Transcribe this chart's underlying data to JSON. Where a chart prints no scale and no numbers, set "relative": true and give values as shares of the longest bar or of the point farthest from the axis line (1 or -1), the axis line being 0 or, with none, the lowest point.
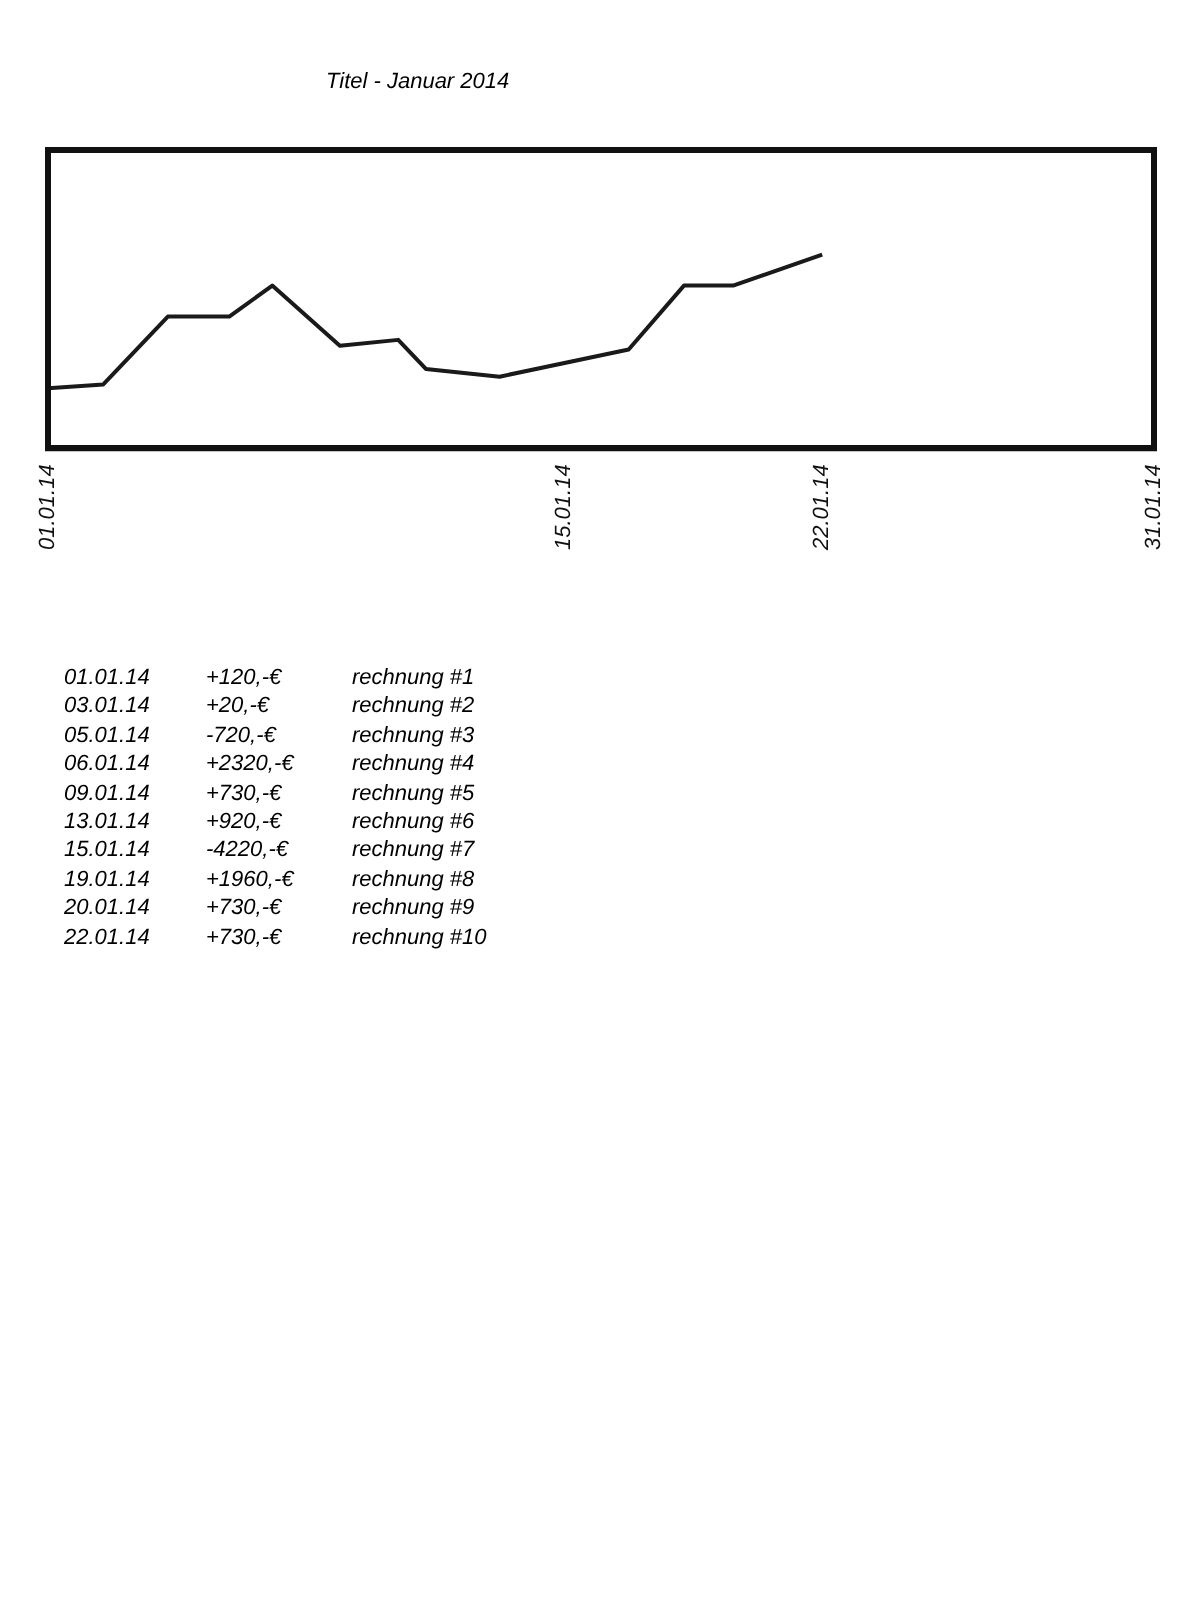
{
  "chart_data": {
    "type": "line",
    "title": "Titel - Januar 2014",
    "relative": true,
    "marker": "none",
    "line_style": "solid",
    "grid": false,
    "legend": false,
    "x": [
      "2014-01-01",
      "2014-01-02T12:00",
      "2014-01-04T06:00",
      "2014-01-05T22:00",
      "2014-01-07T02:00",
      "2014-01-08T22:00",
      "2014-01-10T12:00",
      "2014-01-11T06:00",
      "2014-01-13T06:00",
      "2014-01-16T18:00",
      "2014-01-18T06:00",
      "2014-01-19T14:00",
      "2014-01-22"
    ],
    "series": [
      {
        "color": "#1a1a1a",
        "values": [
          0.31,
          0.33,
          0.68,
          0.68,
          0.84,
          0.53,
          0.56,
          0.41,
          0.37,
          0.51,
          0.84,
          0.84,
          1
        ]
      }
    ],
    "xlim": [
      "2014-01-01",
      "2014-01-31"
    ],
    "xticks": [
      {
        "value": "2014-01-01",
        "label": "01.01.14"
      },
      {
        "value": "2014-01-15",
        "label": "15.01.14"
      },
      {
        "value": "2014-01-22",
        "label": "22.01.14"
      },
      {
        "value": "2014-01-31",
        "label": "31.01.14"
      }
    ],
    "annotations": [
      "01.01.14",
      "+120,-€",
      "rechnung #1",
      "03.01.14",
      "+20,-€",
      "rechnung #2",
      "05.01.14",
      "-720,-€",
      "rechnung #3",
      "06.01.14",
      "+2320,-€",
      "rechnung #4",
      "09.01.14",
      "+730,-€",
      "rechnung #5",
      "13.01.14",
      "+920,-€",
      "rechnung #6",
      "15.01.14",
      "-4220,-€",
      "rechnung #7",
      "19.01.14",
      "+1960,-€",
      "rechnung #8",
      "20.01.14",
      "+730,-€",
      "rechnung #9",
      "22.01.14",
      "+730,-€",
      "rechnung #10"
    ]
  }
}
